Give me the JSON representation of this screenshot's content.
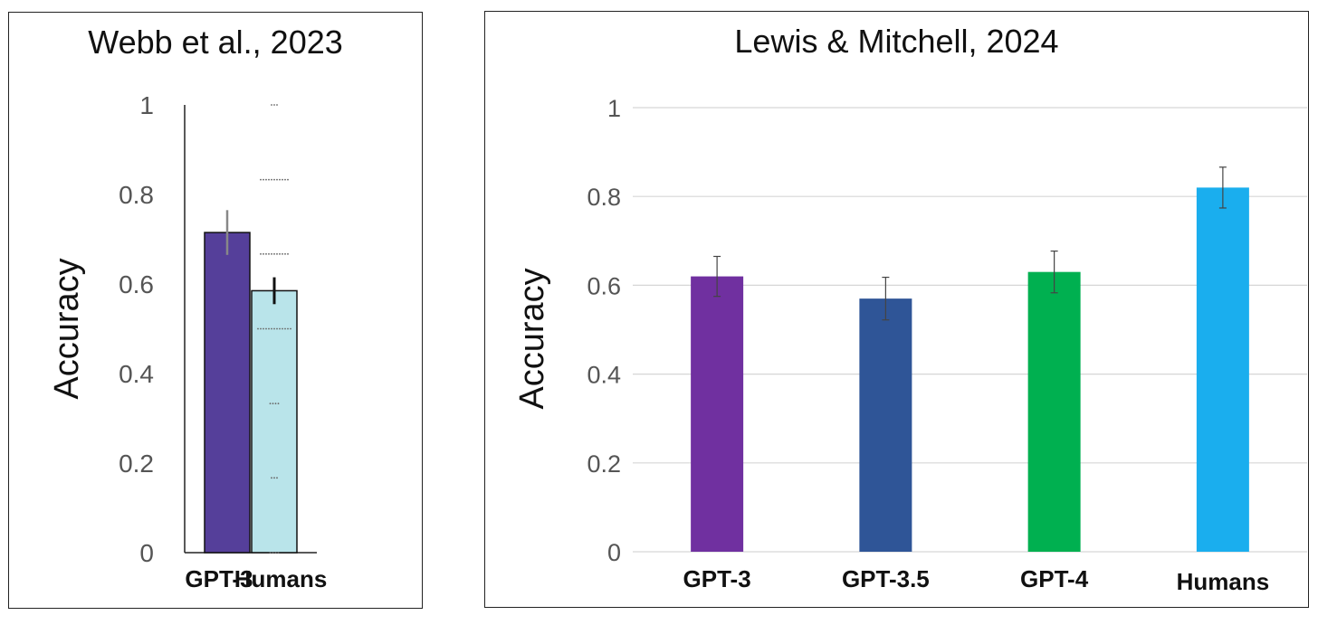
{
  "chart_data": [
    {
      "type": "bar",
      "title": "Webb et al., 2023",
      "xlabel": "",
      "ylabel": "Accuracy",
      "ylim": [
        0,
        1
      ],
      "yticks": [
        "0",
        "0.2",
        "0.4",
        "0.6",
        "0.8",
        "1"
      ],
      "categories": [
        "GPT-3",
        "Humans"
      ],
      "values": [
        0.715,
        0.585
      ],
      "errors": [
        0.05,
        0.03
      ],
      "colors": [
        "#553f9a",
        "#b9e4ea"
      ],
      "grid": false,
      "human_individual_scores": [
        1.0,
        0.833,
        0.667,
        0.5,
        0.333,
        0.167,
        0.0
      ]
    },
    {
      "type": "bar",
      "title": "Lewis & Mitchell, 2024",
      "xlabel": "",
      "ylabel": "Accuracy",
      "ylim": [
        0,
        1
      ],
      "yticks": [
        "0",
        "0.2",
        "0.4",
        "0.6",
        "0.8",
        "1"
      ],
      "categories": [
        "GPT-3",
        "GPT-3.5",
        "GPT-4",
        "Humans"
      ],
      "values": [
        0.62,
        0.57,
        0.63,
        0.82
      ],
      "errors": [
        0.045,
        0.048,
        0.047,
        0.046
      ],
      "colors": [
        "#7030a0",
        "#2f5597",
        "#00b050",
        "#1aaeee"
      ],
      "grid": true
    }
  ]
}
